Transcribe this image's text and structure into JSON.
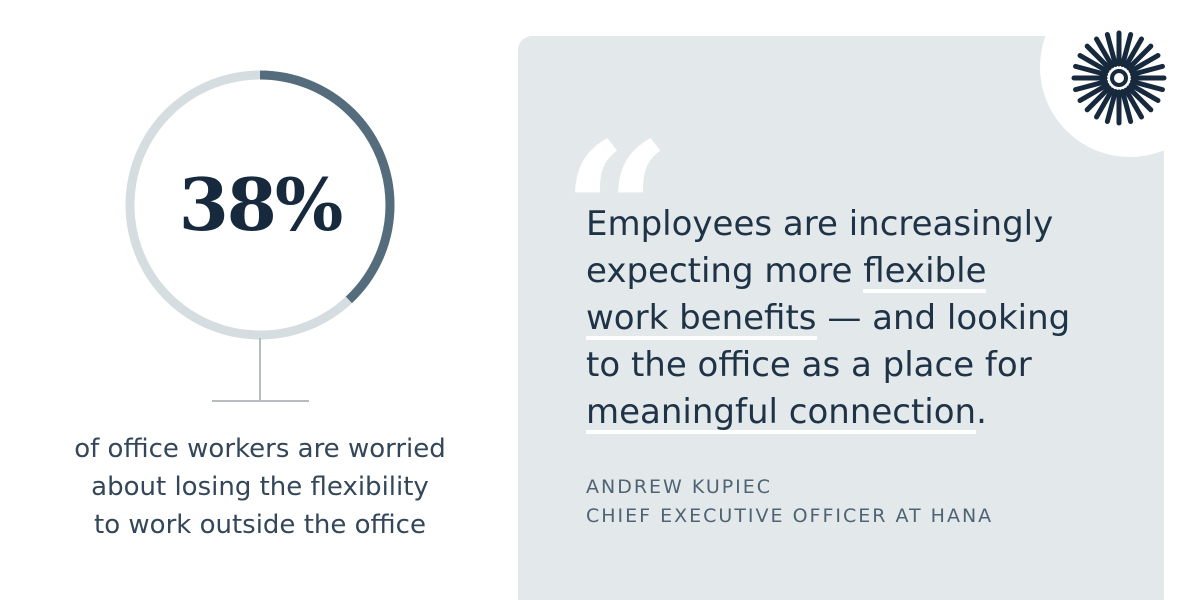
{
  "stat": {
    "percent_label": "38%",
    "percent_value": 38,
    "caption_lines": [
      "of office workers are worried",
      "about losing the flexibility",
      "to work outside the office"
    ]
  },
  "quote": {
    "mark": "“",
    "lines": [
      {
        "text": "Employees are increasingly",
        "highlight": "",
        "rest": ""
      },
      {
        "text": "expecting more ",
        "highlight": "flexible",
        "rest": ""
      },
      {
        "text": "",
        "highlight": "work benefits",
        "rest": " — and looking"
      },
      {
        "text": "to the office as a place for",
        "highlight": "",
        "rest": ""
      },
      {
        "text": "",
        "highlight": "meaningful connection",
        "rest": "."
      }
    ]
  },
  "attribution": {
    "name": "ANDREW KUPIEC",
    "title": "CHIEF EXECUTIVE OFFICER AT HANA"
  },
  "colors": {
    "ring_track": "#d5dde1",
    "ring_fill": "#556c7c",
    "card_bg": "#e3e8eb",
    "text_dark": "#17293d",
    "logo": "#17293d"
  },
  "icons": {
    "logo": "sunburst-logo-icon",
    "quote": "open-quote-icon"
  }
}
